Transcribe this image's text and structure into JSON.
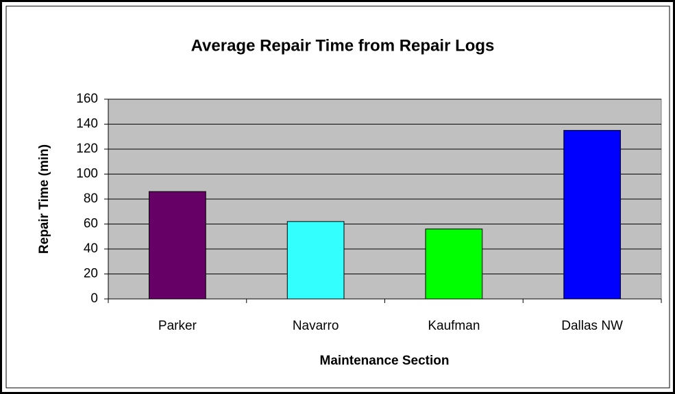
{
  "chart_data": {
    "type": "bar",
    "title": "Average Repair Time from Repair Logs",
    "x_label": "Maintenance Section",
    "y_label": "Repair Time (min)",
    "categories": [
      "Parker",
      "Navarro",
      "Kaufman",
      "Dallas NW"
    ],
    "values": [
      86,
      62,
      56,
      135
    ],
    "colors": [
      "#660066",
      "#33ffff",
      "#00ff00",
      "#0000ff"
    ],
    "ylim": [
      0,
      160
    ],
    "yticks": [
      0,
      20,
      40,
      60,
      80,
      100,
      120,
      140,
      160
    ],
    "grid": true
  }
}
